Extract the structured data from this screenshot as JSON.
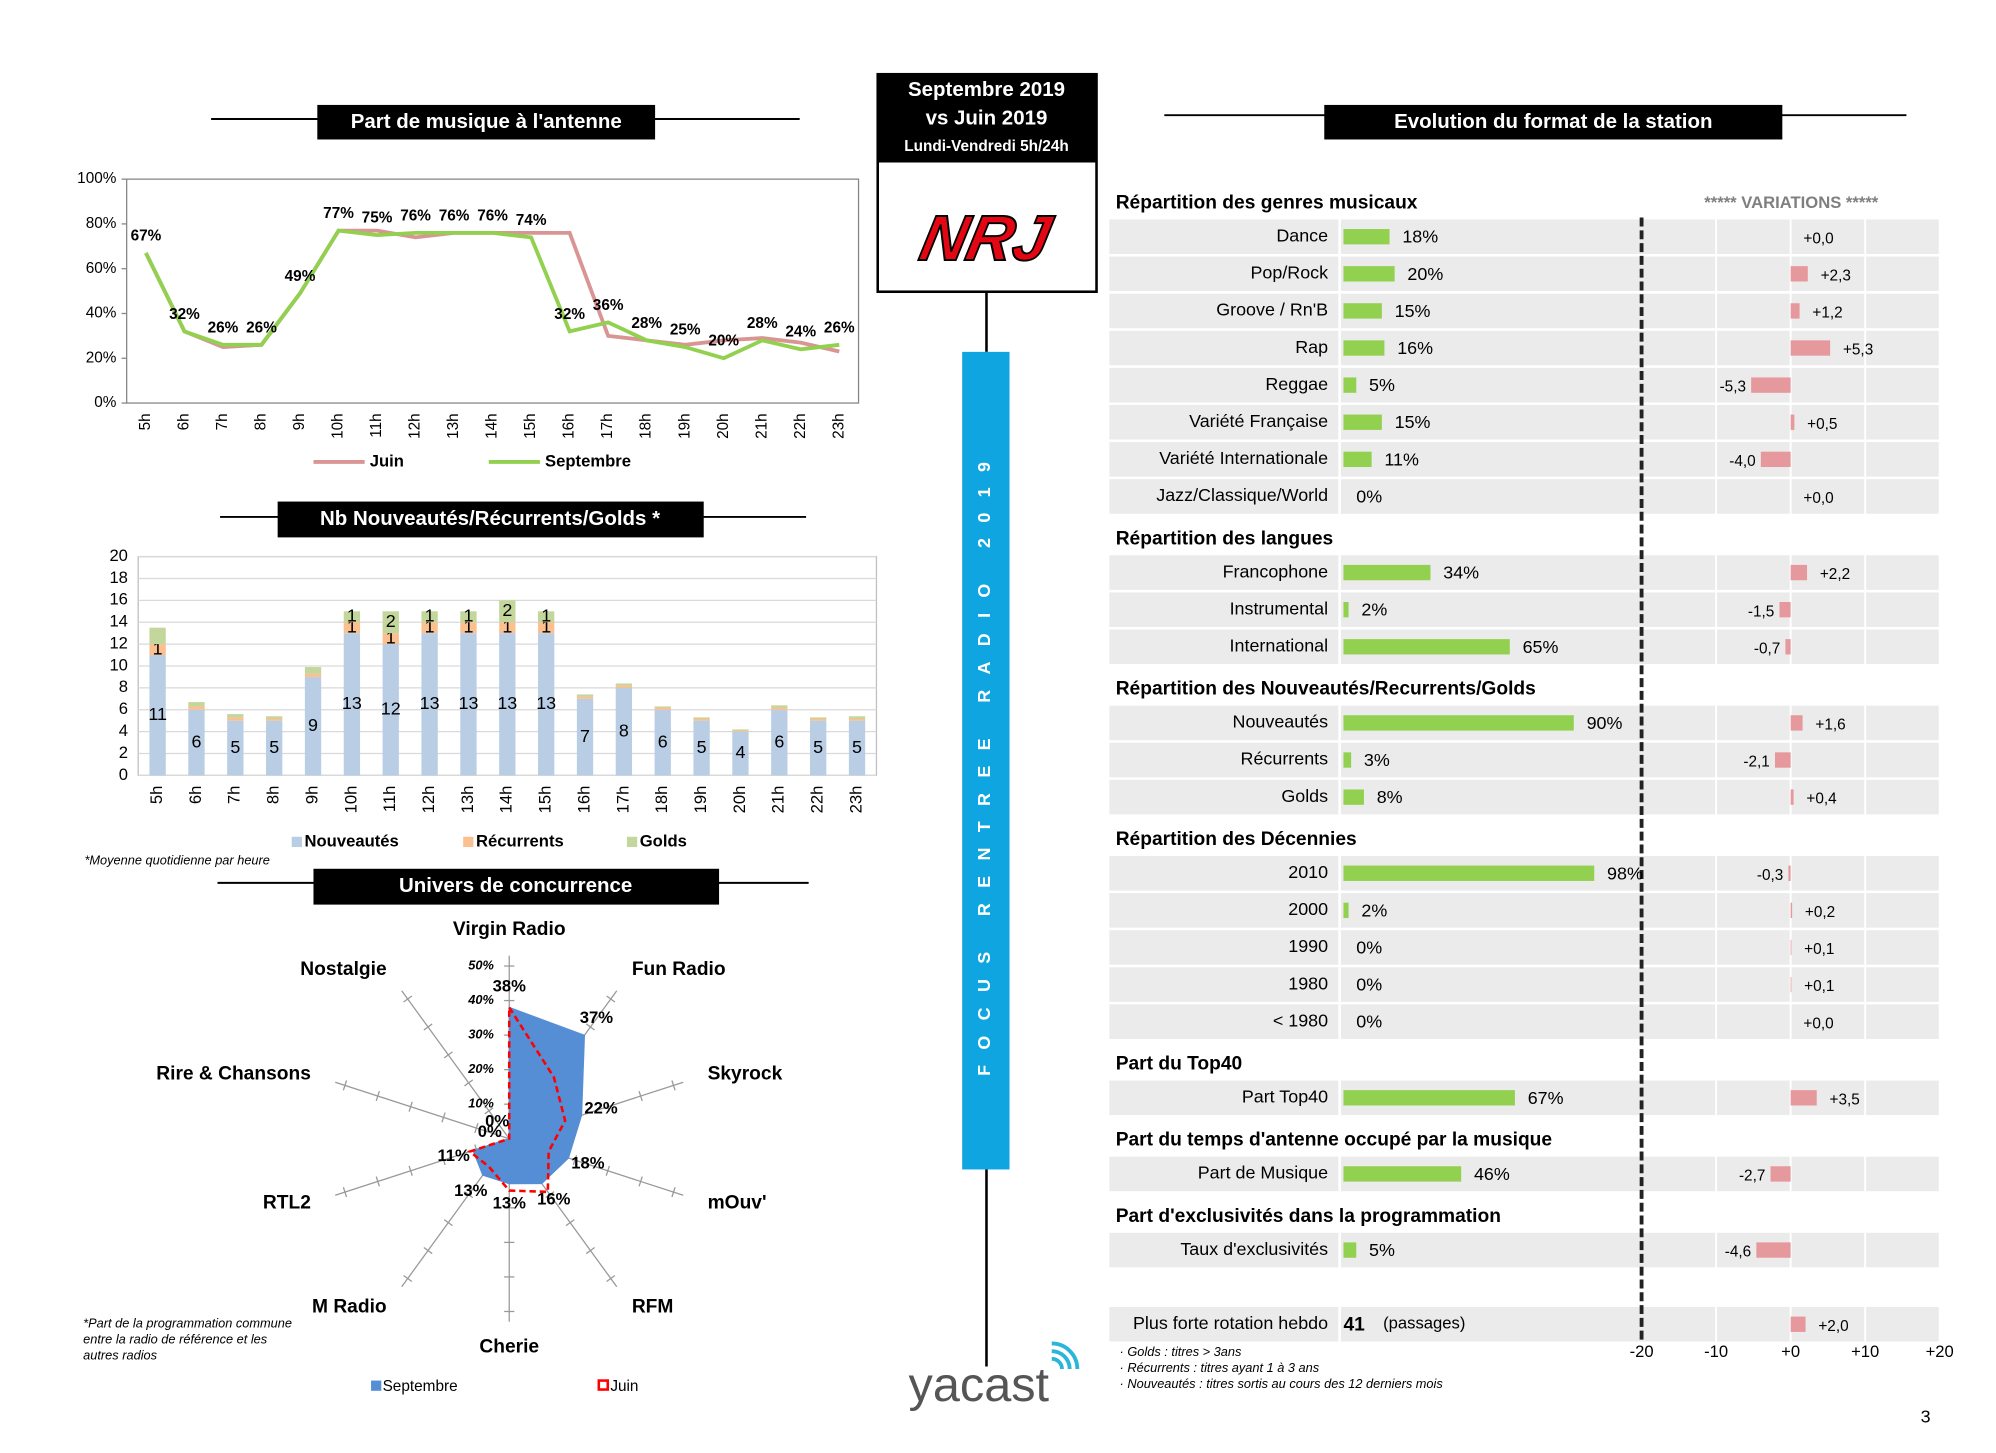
{
  "header": {
    "lines": [
      "Septembre 2019",
      "vs Juin 2019"
    ],
    "period": "Lundi-Vendredi 5h/24h",
    "logo": "NRJ"
  },
  "banner": "FOCUS RENTREE RADIO 2019",
  "footer": {
    "logo": "yacast",
    "page": 3
  },
  "chart_data": [
    {
      "type": "line",
      "title": "Part de musique à l'antenne",
      "categories": [
        "5h",
        "6h",
        "7h",
        "8h",
        "9h",
        "10h",
        "11h",
        "12h",
        "13h",
        "14h",
        "15h",
        "16h",
        "17h",
        "18h",
        "19h",
        "20h",
        "21h",
        "22h",
        "23h"
      ],
      "series": [
        {
          "name": "Juin",
          "color": "#d99594",
          "values": [
            67,
            32,
            25,
            26,
            49,
            77,
            77,
            74,
            76,
            76,
            76,
            76,
            30,
            28,
            26,
            28,
            29,
            27,
            23
          ]
        },
        {
          "name": "Septembre",
          "color": "#92d050",
          "values": [
            67,
            32,
            26,
            26,
            49,
            77,
            75,
            76,
            76,
            76,
            74,
            32,
            36,
            28,
            25,
            20,
            28,
            24,
            26
          ],
          "value_labels": [
            "67%",
            "32%",
            "26%",
            "26%",
            "49%",
            "77%",
            "75%",
            "76%",
            "76%",
            "76%",
            "74%",
            "32%",
            "36%",
            "28%",
            "25%",
            "20%",
            "28%",
            "24%",
            "26%"
          ]
        }
      ],
      "ylim": [
        0,
        100
      ],
      "yticks": [
        {
          "value": 0,
          "label": "0%"
        },
        {
          "value": 20,
          "label": "20%"
        },
        {
          "value": 40,
          "label": "40%"
        },
        {
          "value": 60,
          "label": "60%"
        },
        {
          "value": 80,
          "label": "80%"
        },
        {
          "value": 100,
          "label": "100%"
        }
      ]
    },
    {
      "type": "bar",
      "stacked": true,
      "title": "Nb Nouveautés/Récurrents/Golds *",
      "note": "*Moyenne quotidienne par heure",
      "categories": [
        "5h",
        "6h",
        "7h",
        "8h",
        "9h",
        "10h",
        "11h",
        "12h",
        "13h",
        "14h",
        "15h",
        "16h",
        "17h",
        "18h",
        "19h",
        "20h",
        "21h",
        "22h",
        "23h"
      ],
      "series": [
        {
          "name": "Nouveautés",
          "color": "#b9cde5",
          "values": [
            11,
            6,
            5,
            5,
            9,
            13,
            12,
            13,
            13,
            13,
            13,
            7,
            8,
            6,
            5,
            4,
            6,
            5,
            5
          ]
        },
        {
          "name": "Récurrents",
          "color": "#fac090",
          "values": [
            1,
            0.3,
            0.3,
            0.2,
            0.3,
            1,
            1,
            1,
            1,
            1,
            1,
            0.2,
            0.2,
            0.2,
            0.2,
            0.1,
            0.2,
            0.2,
            0.2
          ]
        },
        {
          "name": "Golds",
          "color": "#c3d69b",
          "values": [
            1.5,
            0.4,
            0.3,
            0.2,
            0.6,
            1,
            2,
            1,
            1,
            2,
            1,
            0.2,
            0.2,
            0.1,
            0.1,
            0.1,
            0.2,
            0.1,
            0.2
          ]
        }
      ],
      "ylim": [
        0,
        20
      ],
      "yticks": [
        0,
        2,
        4,
        6,
        8,
        10,
        12,
        14,
        16,
        18,
        20
      ],
      "grid": true
    },
    {
      "type": "radar",
      "title": "Univers de concurrence",
      "note": [
        "*Part de la programmation commune",
        "entre la radio de référence et les",
        "autres radios"
      ],
      "categories": [
        "Virgin Radio",
        "Fun Radio",
        "Skyrock",
        "mOuv'",
        "RFM",
        "Cherie",
        "M Radio",
        "RTL2",
        "Rire & Chansons",
        "Nostalgie"
      ],
      "series": [
        {
          "name": "Septembre",
          "color": "#558ed5",
          "values": [
            38,
            37,
            22,
            18,
            16,
            13,
            13,
            11,
            0,
            0
          ],
          "value_labels": [
            "38%",
            "37%",
            "22%",
            "18%",
            "16%",
            "13%",
            "13%",
            "11%",
            "0%",
            "0%"
          ]
        },
        {
          "name": "Juin",
          "color": "#ff0000",
          "values": [
            38,
            22,
            17,
            12,
            19,
            15,
            10,
            12,
            0,
            0
          ]
        }
      ],
      "rlim": [
        0,
        50
      ],
      "rticks": [
        {
          "value": 10,
          "label": "10%"
        },
        {
          "value": 20,
          "label": "20%"
        },
        {
          "value": 30,
          "label": "30%"
        },
        {
          "value": 40,
          "label": "40%"
        },
        {
          "value": 50,
          "label": "50%"
        }
      ]
    },
    {
      "type": "bar",
      "title": "Evolution du format de la station",
      "variations_header": "*****    VARIATIONS  *****",
      "xlim": [
        0,
        100
      ],
      "color": "#92d050",
      "variation_color": "#e6999c",
      "variation_lim": [
        -20,
        20
      ],
      "variation_ticks": [
        -20,
        -10,
        {
          "value": 0,
          "label": "+0"
        },
        {
          "value": 10,
          "label": "+10"
        },
        {
          "value": 20,
          "label": "+20"
        }
      ],
      "sections": [
        {
          "title": "Répartition des genres musicaux",
          "categories": [
            "Dance",
            "Pop/Rock",
            "Groove / Rn'B",
            "Rap",
            "Reggae",
            "Variété Française",
            "Variété Internationale",
            "Jazz/Classique/World"
          ],
          "values": [
            18,
            20,
            15,
            16,
            5,
            15,
            11,
            0
          ],
          "value_labels": [
            "18%",
            "20%",
            "15%",
            "16%",
            "5%",
            "15%",
            "11%",
            "0%"
          ],
          "variations": [
            0,
            2.3,
            1.2,
            5.3,
            -5.3,
            0.5,
            -4.0,
            0
          ],
          "variation_labels": [
            "+0,0",
            "+2,3",
            "+1,2",
            "+5,3",
            "-5,3",
            "+0,5",
            "-4,0",
            "+0,0"
          ]
        },
        {
          "title": "Répartition des langues",
          "categories": [
            "Francophone",
            "Instrumental",
            "International"
          ],
          "values": [
            34,
            2,
            65
          ],
          "value_labels": [
            "34%",
            "2%",
            "65%"
          ],
          "variations": [
            2.2,
            -1.5,
            -0.7
          ],
          "variation_labels": [
            "+2,2",
            "-1,5",
            "-0,7"
          ]
        },
        {
          "title": "Répartition des Nouveautés/Recurrents/Golds",
          "categories": [
            "Nouveautés",
            "Récurrents",
            "Golds"
          ],
          "values": [
            90,
            3,
            8
          ],
          "value_labels": [
            "90%",
            "3%",
            "8%"
          ],
          "variations": [
            1.6,
            -2.1,
            0.4
          ],
          "variation_labels": [
            "+1,6",
            "-2,1",
            "+0,4"
          ]
        },
        {
          "title": "Répartition des Décennies",
          "categories": [
            "2010",
            "2000",
            "1990",
            "1980",
            "< 1980"
          ],
          "values": [
            98,
            2,
            0,
            0,
            0
          ],
          "value_labels": [
            "98%",
            "2%",
            "0%",
            "0%",
            "0%"
          ],
          "variations": [
            -0.3,
            0.2,
            0.1,
            0.1,
            0
          ],
          "variation_labels": [
            "-0,3",
            "+0,2",
            "+0,1",
            "+0,1",
            "+0,0"
          ]
        },
        {
          "title": "Part du Top40",
          "categories": [
            "Part Top40"
          ],
          "values": [
            67
          ],
          "value_labels": [
            "67%"
          ],
          "variations": [
            3.5
          ],
          "variation_labels": [
            "+3,5"
          ]
        },
        {
          "title": "Part du temps d'antenne occupé par la musique",
          "categories": [
            "Part de Musique"
          ],
          "values": [
            46
          ],
          "value_labels": [
            "46%"
          ],
          "variations": [
            -2.7
          ],
          "variation_labels": [
            "-2,7"
          ]
        },
        {
          "title": "Part d'exclusivités dans la programmation",
          "categories": [
            "Taux d'exclusivités"
          ],
          "values": [
            5
          ],
          "value_labels": [
            "5%"
          ],
          "variations": [
            -4.6
          ],
          "variation_labels": [
            "-4,6"
          ]
        }
      ],
      "rotation": {
        "label": "Plus forte rotation hebdo",
        "value": 41,
        "unit": "(passages)",
        "variation": 2.0,
        "variation_label": "+2,0"
      },
      "notes": [
        "· Golds : titres > 3ans",
        "· Récurrents : titres ayant 1 à 3 ans",
        "· Nouveautés : titres sortis au cours des 12 derniers mois"
      ]
    }
  ]
}
